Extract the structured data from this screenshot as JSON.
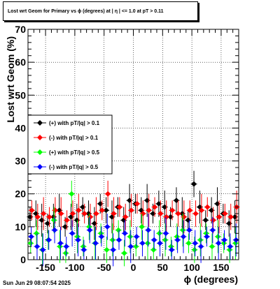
{
  "title": "Lost wrt Geom for Primary vs ϕ (degrees) at | η | <= 1.0 at pT > 0.11",
  "footer": "Sun Jun 29 08:07:54 2025",
  "chart_data": {
    "type": "scatter",
    "xlabel": "ϕ (degrees)",
    "ylabel": "Lost wrt Geom (%)",
    "xlim": [
      -180,
      180
    ],
    "ylim": [
      0,
      70
    ],
    "x_ticks": [
      -150,
      -100,
      -50,
      0,
      50,
      100,
      150
    ],
    "y_ticks": [
      0,
      10,
      20,
      30,
      40,
      50,
      60,
      70
    ],
    "grid": true,
    "legend_position": "left-middle",
    "series": [
      {
        "name": "(+) with pT/|q| > 0.1",
        "color": "#000000",
        "x": [
          -175,
          -165,
          -155,
          -145,
          -135,
          -125,
          -115,
          -105,
          -95,
          -85,
          -75,
          -65,
          -55,
          -45,
          -35,
          -25,
          -15,
          -5,
          5,
          15,
          25,
          35,
          45,
          55,
          65,
          75,
          85,
          95,
          105,
          115,
          125,
          135,
          145,
          155,
          165,
          175
        ],
        "y": [
          13,
          14,
          12,
          11,
          13,
          15,
          10,
          13,
          12,
          16,
          14,
          11,
          17,
          15,
          13,
          16,
          12,
          18,
          17,
          15,
          18,
          14,
          17,
          16,
          13,
          18,
          14,
          12,
          23,
          16,
          12,
          15,
          17,
          14,
          11,
          13
        ]
      },
      {
        "name": "(-) with pT/|q| > 0.1",
        "color": "#ff0000",
        "x": [
          -175,
          -165,
          -155,
          -145,
          -135,
          -125,
          -115,
          -105,
          -95,
          -85,
          -75,
          -65,
          -55,
          -45,
          -35,
          -25,
          -15,
          -5,
          5,
          15,
          25,
          35,
          45,
          55,
          65,
          75,
          85,
          95,
          105,
          115,
          125,
          135,
          145,
          155,
          165,
          175
        ],
        "y": [
          15,
          13,
          14,
          13,
          15,
          14,
          12,
          14,
          15,
          14,
          13,
          14,
          15,
          20,
          14,
          16,
          13,
          15,
          17,
          14,
          15,
          16,
          14,
          13,
          15,
          14,
          13,
          15,
          14,
          15,
          16,
          12,
          13,
          14,
          13,
          16
        ]
      },
      {
        "name": "(+) with pT/|q| > 0.5",
        "color": "#00ff00",
        "x": [
          -175,
          -165,
          -155,
          -145,
          -135,
          -125,
          -115,
          -105,
          -95,
          -85,
          -75,
          -65,
          -55,
          -45,
          -35,
          -25,
          -15,
          -5,
          5,
          15,
          25,
          35,
          45,
          55,
          65,
          75,
          85,
          95,
          105,
          115,
          125,
          135,
          145,
          155,
          165,
          175
        ],
        "y": [
          5,
          8,
          3,
          6,
          12,
          4,
          2,
          20,
          7,
          4,
          10,
          5,
          8,
          3,
          6,
          9,
          2,
          7,
          4,
          10,
          5,
          3,
          8,
          6,
          4,
          7,
          9,
          5,
          3,
          6,
          8,
          4,
          7,
          5,
          3,
          5
        ]
      },
      {
        "name": "(-) with pT/|q| > 0.5",
        "color": "#0000ff",
        "x": [
          -175,
          -165,
          -155,
          -145,
          -135,
          -125,
          -115,
          -105,
          -95,
          -85,
          -75,
          -65,
          -55,
          -45,
          -35,
          -25,
          -15,
          -5,
          5,
          15,
          25,
          35,
          45,
          55,
          65,
          75,
          85,
          95,
          105,
          115,
          125,
          135,
          145,
          155,
          165,
          175
        ],
        "y": [
          7,
          4,
          3,
          6,
          9,
          5,
          4,
          8,
          6,
          3,
          9,
          5,
          7,
          10,
          3,
          6,
          8,
          4,
          7,
          5,
          9,
          6,
          5,
          8,
          3,
          6,
          7,
          9,
          5,
          4,
          7,
          9,
          5,
          6,
          4,
          6
        ]
      }
    ]
  }
}
